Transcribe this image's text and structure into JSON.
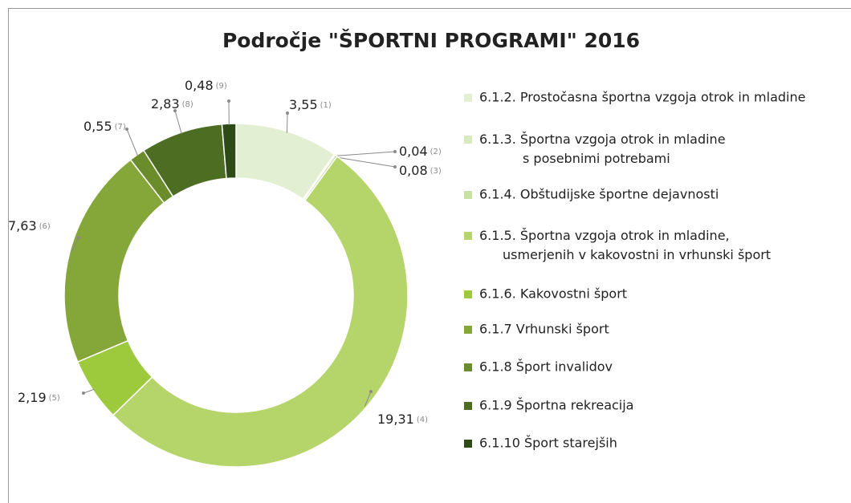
{
  "chart_data": {
    "type": "donut",
    "title": "Področje \"ŠPORTNI PROGRAMI\" 2016",
    "categories": [
      "6.1.2. Prostočasna športna vzgoja otrok in mladine",
      "6.1.3. Športna vzgoja otrok in mladine\ns posebnimi potrebami",
      "6.1.4. Obštudijske športne dejavnosti",
      "6.1.5. Športna vzgoja otrok in mladine,\nusmerjenih v kakovostni in vrhunski šport",
      "6.1.6. Kakovostni šport",
      "6.1.7 Vrhunski šport",
      "6.1.8 Šport invalidov",
      "6.1.9 Športna rekreacija",
      "6.1.10 Šport starejših"
    ],
    "values": [
      3.55,
      0.04,
      0.08,
      19.31,
      2.19,
      7.63,
      0.55,
      2.83,
      0.48
    ],
    "value_labels": [
      "3,55",
      "0,04",
      "0,08",
      "19,31",
      "2,19",
      "7,63",
      "0,55",
      "2,83",
      "0,48"
    ],
    "value_label_notes": [
      "(1)",
      "(2)",
      "(3)",
      "(4)",
      "(5)",
      "(6)",
      "(7)",
      "(8)",
      "(9)"
    ],
    "colors": [
      "#e3efd2",
      "#d7e9be",
      "#c9e1a4",
      "#b5d46a",
      "#9cca3c",
      "#85a73a",
      "#6a8c2b",
      "#4d6e22",
      "#2e4b17"
    ],
    "legend": "right"
  }
}
